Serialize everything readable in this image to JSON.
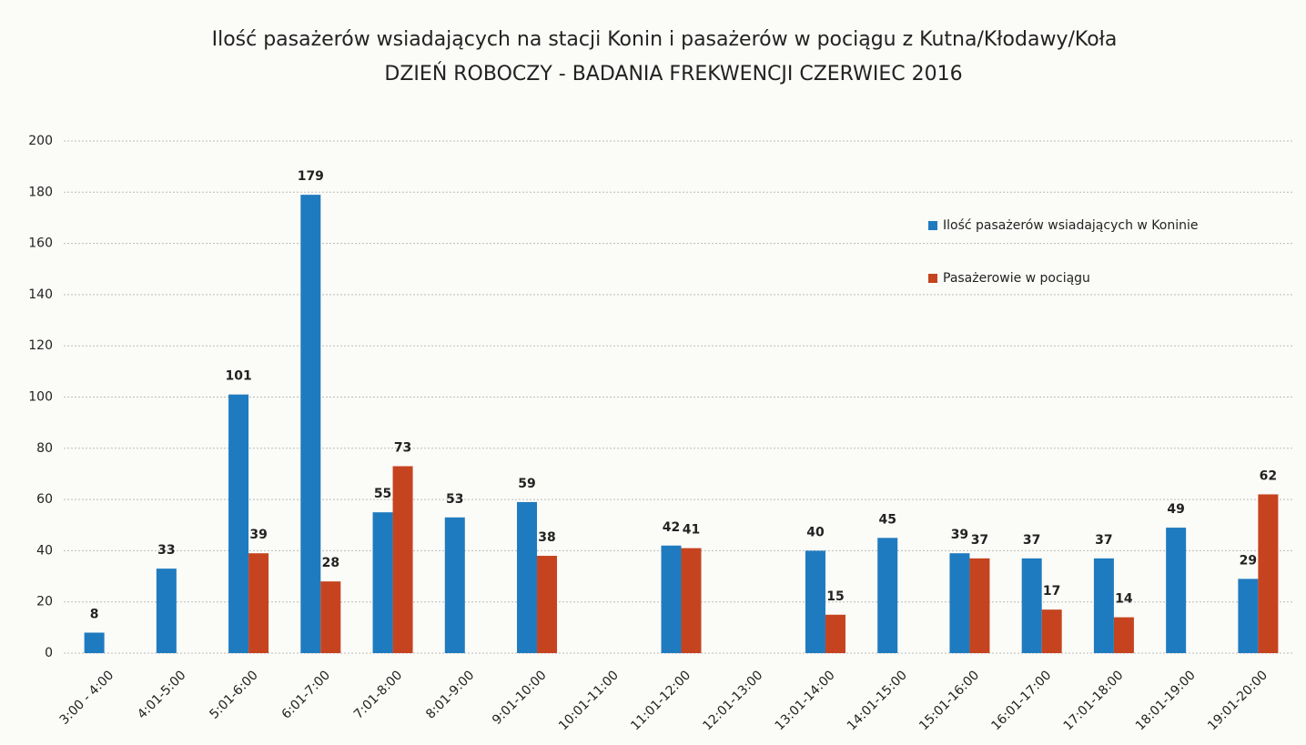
{
  "chart_data": {
    "type": "bar",
    "title": "Ilość pasażerów wsiadających na stacji Konin i pasażerów w pociągu z Kutna/Kłodawy/Koła",
    "subtitle": "DZIEŃ ROBOCZY - BADANIA FREKWENCJI CZERWIEC 2016",
    "categories": [
      "3:00 - 4:00",
      "4:01-5:00",
      "5:01-6:00",
      "6:01-7:00",
      "7:01-8:00",
      "8:01-9:00",
      "9:01-10:00",
      "10:01-11:00",
      "11:01-12:00",
      "12:01-13:00",
      "13:01-14:00",
      "14:01-15:00",
      "15:01-16:00",
      "16:01-17:00",
      "17:01-18:00",
      "18:01-19:00",
      "19:01-20:00"
    ],
    "series": [
      {
        "name": "Ilość pasażerów wsiadających w Koninie",
        "color": "#1f7bbf",
        "values": [
          8,
          33,
          101,
          179,
          55,
          53,
          59,
          null,
          42,
          null,
          40,
          45,
          39,
          37,
          37,
          49,
          29
        ]
      },
      {
        "name": "Pasażerowie w pociągu",
        "color": "#c5441f",
        "values": [
          null,
          null,
          39,
          28,
          73,
          null,
          38,
          null,
          41,
          null,
          15,
          null,
          37,
          17,
          14,
          null,
          62
        ]
      }
    ],
    "ylim": [
      0,
      200
    ],
    "yticks": [
      0,
      20,
      40,
      60,
      80,
      100,
      120,
      140,
      160,
      180,
      200
    ],
    "grid": true,
    "legend": "upper right"
  }
}
